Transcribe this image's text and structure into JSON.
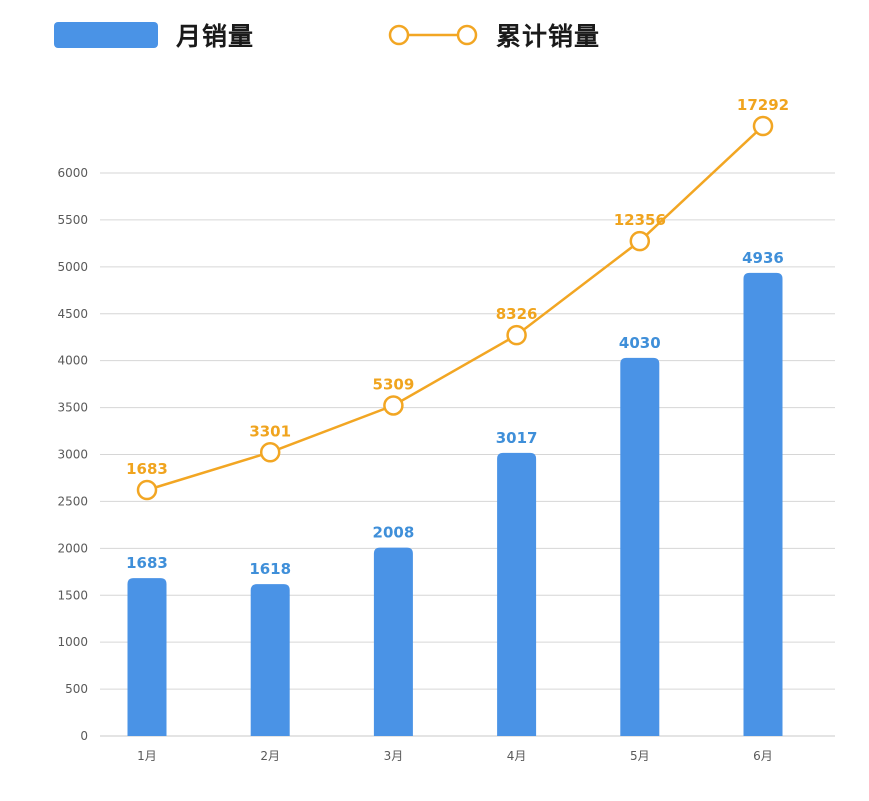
{
  "chart_data": {
    "type": "bar",
    "categories": [
      "1月",
      "2月",
      "3月",
      "4月",
      "5月",
      "6月"
    ],
    "series": [
      {
        "name": "月销量",
        "type": "bar",
        "axis": "left",
        "color": "#4a93e6",
        "values": [
          1683,
          1618,
          2008,
          3017,
          4030,
          4936
        ]
      },
      {
        "name": "累计销量",
        "type": "line",
        "axis": "right",
        "color": "#f2a623",
        "values": [
          1683,
          3301,
          5309,
          8326,
          12356,
          17292
        ]
      }
    ],
    "y_ticks": [
      0,
      500,
      1000,
      1500,
      2000,
      2500,
      3000,
      3500,
      4000,
      4500,
      5000,
      5500,
      6000
    ],
    "ylim": [
      0,
      6000
    ],
    "grid": true,
    "legend": "top"
  }
}
